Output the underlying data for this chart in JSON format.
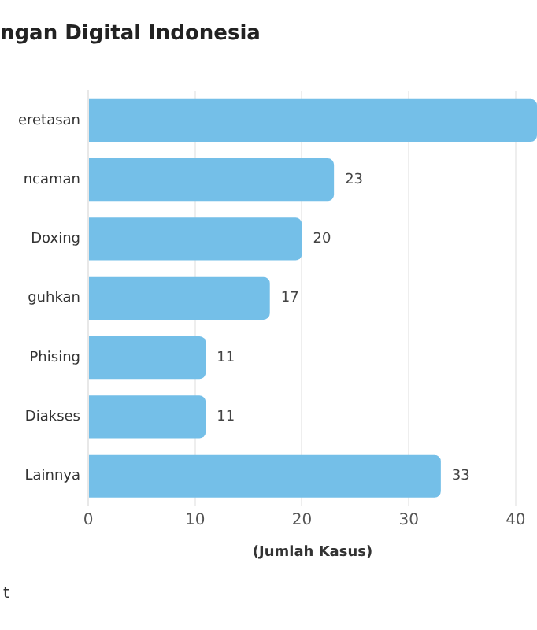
{
  "chart_data": {
    "type": "bar",
    "orientation": "horizontal",
    "title": "ngan Digital Indonesia",
    "xlabel": "(Jumlah Kasus)",
    "categories": [
      "eretasan",
      "ncaman",
      "Doxing",
      "guhkan",
      "Phising",
      "Diakses",
      "Lainnya"
    ],
    "values": [
      42,
      23,
      20,
      17,
      11,
      11,
      33
    ],
    "value_labels": [
      null,
      "23",
      "20",
      "17",
      "11",
      "11",
      "33"
    ],
    "color": "#74bfe8",
    "xlim": [
      0,
      42
    ],
    "xticks": [
      0,
      10,
      20,
      30,
      40
    ],
    "grid": "x",
    "legend": false,
    "annotations": [
      "t"
    ]
  }
}
